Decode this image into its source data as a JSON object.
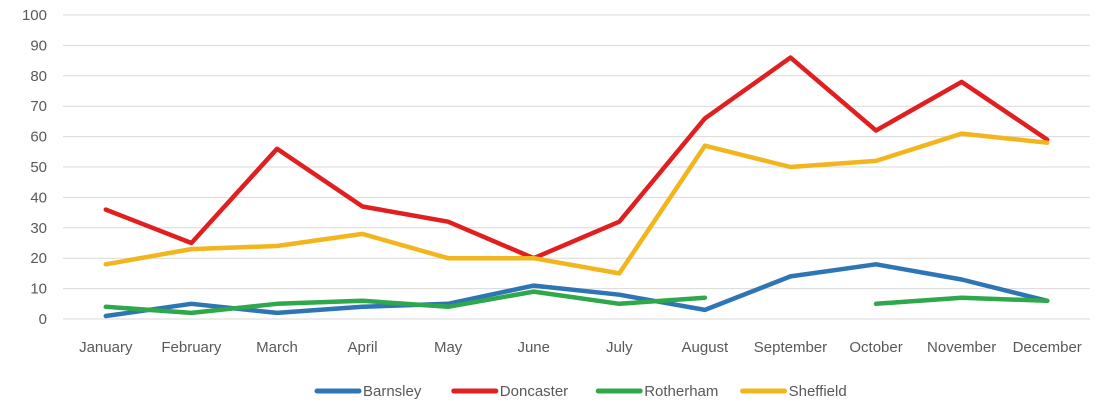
{
  "chart_data": {
    "type": "line",
    "title": "",
    "xlabel": "",
    "ylabel": "",
    "ylim": [
      0,
      100
    ],
    "yticks": [
      0,
      10,
      20,
      30,
      40,
      50,
      60,
      70,
      80,
      90,
      100
    ],
    "grid": true,
    "legend_position": "bottom",
    "categories": [
      "January",
      "February",
      "March",
      "April",
      "May",
      "June",
      "July",
      "August",
      "September",
      "October",
      "November",
      "December"
    ],
    "series": [
      {
        "name": "Barnsley",
        "color": "#2E75B6",
        "values": [
          1,
          5,
          2,
          4,
          5,
          11,
          8,
          3,
          14,
          18,
          13,
          6
        ]
      },
      {
        "name": "Doncaster",
        "color": "#E02020",
        "values": [
          36,
          25,
          56,
          37,
          32,
          20,
          32,
          66,
          86,
          62,
          78,
          59
        ]
      },
      {
        "name": "Rotherham",
        "color": "#2EA84A",
        "values": [
          4,
          2,
          5,
          6,
          4,
          9,
          5,
          7,
          null,
          5,
          7,
          6
        ]
      },
      {
        "name": "Sheffield",
        "color": "#F2B51E",
        "values": [
          18,
          23,
          24,
          28,
          20,
          20,
          15,
          57,
          50,
          52,
          61,
          58
        ]
      }
    ]
  }
}
